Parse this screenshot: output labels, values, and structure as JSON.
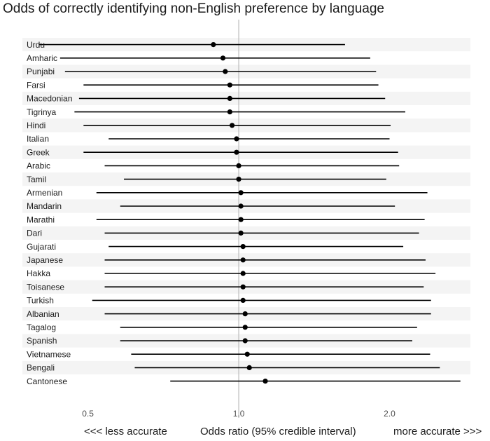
{
  "title": "Odds of correctly identifying non-English preference by language",
  "footer": {
    "left": "<<< less accurate",
    "center": "Odds ratio (95% credible interval)",
    "right": "more accurate >>>"
  },
  "colors": {
    "stripe": "#f4f4f4",
    "refline": "#bbbbbb",
    "mark": "#000000",
    "text": "#1a1a1a"
  },
  "chart_data": {
    "type": "forest",
    "title": "Odds of correctly identifying non-English preference by language",
    "xlabel": "Odds ratio (95% credible interval)",
    "xscale": "log",
    "xlim": [
      0.37,
      2.9
    ],
    "xticks": [
      0.5,
      1.0,
      2.0
    ],
    "xtick_labels": [
      "0.5",
      "1.0",
      "2.0"
    ],
    "reference_line": 1.0,
    "rows": [
      {
        "label": "Urdu",
        "estimate": 0.89,
        "lower": 0.4,
        "upper": 1.63
      },
      {
        "label": "Amharic",
        "estimate": 0.93,
        "lower": 0.44,
        "upper": 1.83
      },
      {
        "label": "Punjabi",
        "estimate": 0.94,
        "lower": 0.45,
        "upper": 1.88
      },
      {
        "label": "Farsi",
        "estimate": 0.96,
        "lower": 0.49,
        "upper": 1.9
      },
      {
        "label": "Macedonian",
        "estimate": 0.96,
        "lower": 0.48,
        "upper": 1.96
      },
      {
        "label": "Tigrinya",
        "estimate": 0.96,
        "lower": 0.47,
        "upper": 2.15
      },
      {
        "label": "Hindi",
        "estimate": 0.97,
        "lower": 0.49,
        "upper": 2.01
      },
      {
        "label": "Italian",
        "estimate": 0.99,
        "lower": 0.55,
        "upper": 2.0
      },
      {
        "label": "Greek",
        "estimate": 0.99,
        "lower": 0.49,
        "upper": 2.08
      },
      {
        "label": "Arabic",
        "estimate": 1.0,
        "lower": 0.54,
        "upper": 2.09
      },
      {
        "label": "Tamil",
        "estimate": 1.0,
        "lower": 0.59,
        "upper": 1.97
      },
      {
        "label": "Armenian",
        "estimate": 1.01,
        "lower": 0.52,
        "upper": 2.38
      },
      {
        "label": "Mandarin",
        "estimate": 1.01,
        "lower": 0.58,
        "upper": 2.05
      },
      {
        "label": "Marathi",
        "estimate": 1.01,
        "lower": 0.52,
        "upper": 2.35
      },
      {
        "label": "Dari",
        "estimate": 1.01,
        "lower": 0.54,
        "upper": 2.29
      },
      {
        "label": "Gujarati",
        "estimate": 1.02,
        "lower": 0.55,
        "upper": 2.13
      },
      {
        "label": "Japanese",
        "estimate": 1.02,
        "lower": 0.54,
        "upper": 2.36
      },
      {
        "label": "Hakka",
        "estimate": 1.02,
        "lower": 0.54,
        "upper": 2.47
      },
      {
        "label": "Toisanese",
        "estimate": 1.02,
        "lower": 0.54,
        "upper": 2.34
      },
      {
        "label": "Turkish",
        "estimate": 1.02,
        "lower": 0.51,
        "upper": 2.42
      },
      {
        "label": "Albanian",
        "estimate": 1.03,
        "lower": 0.54,
        "upper": 2.42
      },
      {
        "label": "Tagalog",
        "estimate": 1.03,
        "lower": 0.58,
        "upper": 2.27
      },
      {
        "label": "Spanish",
        "estimate": 1.03,
        "lower": 0.58,
        "upper": 2.22
      },
      {
        "label": "Vietnamese",
        "estimate": 1.04,
        "lower": 0.61,
        "upper": 2.41
      },
      {
        "label": "Bengali",
        "estimate": 1.05,
        "lower": 0.62,
        "upper": 2.52
      },
      {
        "label": "Cantonese",
        "estimate": 1.13,
        "lower": 0.73,
        "upper": 2.77
      }
    ]
  }
}
